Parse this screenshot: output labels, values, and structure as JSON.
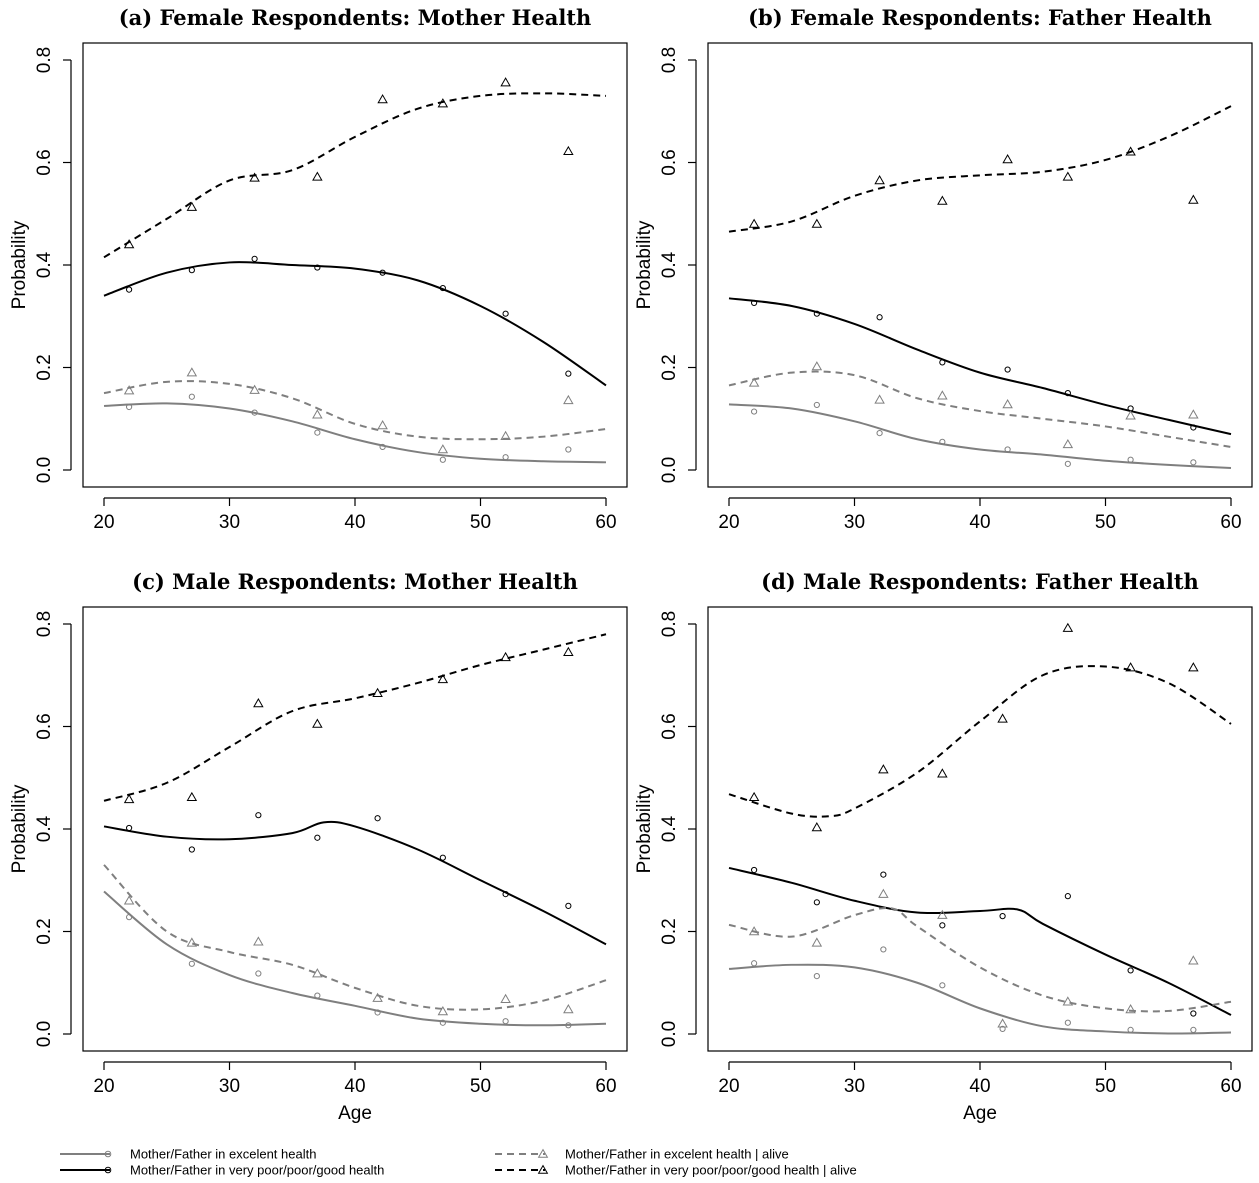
{
  "series_styles": [
    {
      "key": "excellent",
      "color": "#7f7f7f",
      "dash": false,
      "marker": "circle"
    },
    {
      "key": "poor",
      "color": "#000000",
      "dash": false,
      "marker": "circle"
    },
    {
      "key": "excellent_alive",
      "color": "#7f7f7f",
      "dash": true,
      "marker": "triangle"
    },
    {
      "key": "poor_alive",
      "color": "#000000",
      "dash": true,
      "marker": "triangle"
    }
  ],
  "legend": [
    {
      "key": "excellent",
      "label": "Mother/Father in excelent health"
    },
    {
      "key": "poor",
      "label": "Mother/Father in very poor/poor/good health"
    },
    {
      "key": "excellent_alive",
      "label": "Mother/Father in excelent health | alive"
    },
    {
      "key": "poor_alive",
      "label": "Mother/Father in very poor/poor/good health | alive"
    }
  ],
  "chart_data": [
    {
      "type": "scatter",
      "title": "(a) Female Respondents: Mother Health",
      "xlabel": "",
      "ylabel": "Probability",
      "xlim": [
        20,
        60
      ],
      "ylim": [
        0,
        0.8
      ],
      "xticks": [
        "20",
        "30",
        "40",
        "50",
        "60"
      ],
      "yticks": [
        "0.0",
        "0.2",
        "0.4",
        "0.6",
        "0.8"
      ],
      "series": [
        {
          "key": "excellent",
          "x": [
            22,
            27,
            32,
            37,
            42.2,
            47,
            52,
            57
          ],
          "y": [
            0.123,
            0.143,
            0.112,
            0.073,
            0.045,
            0.02,
            0.025,
            0.04
          ],
          "smooth_x": [
            20,
            25,
            30,
            35,
            40,
            45,
            50,
            55,
            60
          ],
          "smooth_y": [
            0.125,
            0.13,
            0.12,
            0.095,
            0.06,
            0.035,
            0.022,
            0.017,
            0.015
          ]
        },
        {
          "key": "poor",
          "x": [
            22,
            27,
            32,
            37,
            42.2,
            47,
            52,
            57
          ],
          "y": [
            0.352,
            0.39,
            0.412,
            0.395,
            0.385,
            0.355,
            0.305,
            0.188
          ],
          "smooth_x": [
            20,
            25,
            30,
            35,
            40,
            45,
            50,
            55,
            60
          ],
          "smooth_y": [
            0.34,
            0.385,
            0.405,
            0.4,
            0.393,
            0.37,
            0.32,
            0.25,
            0.165
          ]
        },
        {
          "key": "excellent_alive",
          "x": [
            22,
            27,
            32,
            37,
            42.2,
            47,
            52,
            57
          ],
          "y": [
            0.155,
            0.19,
            0.156,
            0.108,
            0.087,
            0.04,
            0.066,
            0.136
          ],
          "smooth_x": [
            20,
            25,
            30,
            35,
            40,
            45,
            50,
            55,
            60
          ],
          "smooth_y": [
            0.15,
            0.172,
            0.168,
            0.14,
            0.09,
            0.065,
            0.06,
            0.065,
            0.08
          ]
        },
        {
          "key": "poor_alive",
          "x": [
            22,
            27,
            32,
            37,
            42.2,
            47,
            52,
            57
          ],
          "y": [
            0.44,
            0.513,
            0.57,
            0.572,
            0.723,
            0.715,
            0.756,
            0.622
          ],
          "smooth_x": [
            20,
            25,
            30,
            35,
            40,
            45,
            50,
            55,
            60
          ],
          "smooth_y": [
            0.415,
            0.49,
            0.565,
            0.585,
            0.65,
            0.705,
            0.73,
            0.735,
            0.73
          ]
        }
      ]
    },
    {
      "type": "scatter",
      "title": "(b) Female Respondents: Father Health",
      "xlabel": "",
      "ylabel": "Probability",
      "xlim": [
        20,
        60
      ],
      "ylim": [
        0,
        0.8
      ],
      "xticks": [
        "20",
        "30",
        "40",
        "50",
        "60"
      ],
      "yticks": [
        "0.0",
        "0.2",
        "0.4",
        "0.6",
        "0.8"
      ],
      "series": [
        {
          "key": "excellent",
          "x": [
            22,
            27,
            32,
            37,
            42.2,
            47,
            52,
            57
          ],
          "y": [
            0.114,
            0.127,
            0.072,
            0.055,
            0.04,
            0.012,
            0.02,
            0.015
          ],
          "smooth_x": [
            20,
            25,
            30,
            35,
            40,
            45,
            50,
            55,
            60
          ],
          "smooth_y": [
            0.128,
            0.12,
            0.095,
            0.06,
            0.04,
            0.03,
            0.018,
            0.01,
            0.004
          ]
        },
        {
          "key": "poor",
          "x": [
            22,
            27,
            32,
            37,
            42.2,
            47,
            52,
            57
          ],
          "y": [
            0.326,
            0.305,
            0.298,
            0.21,
            0.196,
            0.15,
            0.12,
            0.083
          ],
          "smooth_x": [
            20,
            25,
            30,
            35,
            40,
            45,
            50,
            55,
            60
          ],
          "smooth_y": [
            0.335,
            0.32,
            0.285,
            0.235,
            0.19,
            0.16,
            0.127,
            0.098,
            0.07
          ]
        },
        {
          "key": "excellent_alive",
          "x": [
            22,
            27,
            32,
            37,
            42.2,
            47,
            52,
            57
          ],
          "y": [
            0.17,
            0.202,
            0.137,
            0.145,
            0.128,
            0.05,
            0.106,
            0.108
          ],
          "smooth_x": [
            20,
            25,
            30,
            35,
            40,
            45,
            50,
            55,
            60
          ],
          "smooth_y": [
            0.165,
            0.19,
            0.185,
            0.14,
            0.115,
            0.1,
            0.085,
            0.065,
            0.045
          ]
        },
        {
          "key": "poor_alive",
          "x": [
            22,
            27,
            32,
            37,
            42.2,
            47,
            52,
            57
          ],
          "y": [
            0.48,
            0.48,
            0.565,
            0.525,
            0.606,
            0.572,
            0.621,
            0.527
          ],
          "smooth_x": [
            20,
            25,
            30,
            35,
            40,
            45,
            50,
            55,
            60
          ],
          "smooth_y": [
            0.465,
            0.485,
            0.535,
            0.565,
            0.575,
            0.582,
            0.605,
            0.65,
            0.71
          ]
        }
      ]
    },
    {
      "type": "scatter",
      "title": "(c) Male Respondents: Mother Health",
      "xlabel": "Age",
      "ylabel": "Probability",
      "xlim": [
        20,
        60
      ],
      "ylim": [
        0,
        0.8
      ],
      "xticks": [
        "20",
        "30",
        "40",
        "50",
        "60"
      ],
      "yticks": [
        "0.0",
        "0.2",
        "0.4",
        "0.6",
        "0.8"
      ],
      "series": [
        {
          "key": "excellent",
          "x": [
            22,
            27,
            32.3,
            37,
            41.8,
            47,
            52,
            57
          ],
          "y": [
            0.228,
            0.137,
            0.118,
            0.075,
            0.042,
            0.022,
            0.025,
            0.017
          ],
          "smooth_x": [
            20,
            25,
            30,
            35,
            40,
            45,
            50,
            55,
            60
          ],
          "smooth_y": [
            0.278,
            0.175,
            0.115,
            0.08,
            0.055,
            0.03,
            0.02,
            0.017,
            0.02
          ]
        },
        {
          "key": "poor",
          "x": [
            22,
            27,
            32.3,
            37,
            41.8,
            47,
            52,
            57
          ],
          "y": [
            0.402,
            0.36,
            0.427,
            0.383,
            0.421,
            0.344,
            0.273,
            0.25
          ],
          "smooth_x": [
            20,
            25,
            30,
            35,
            37.5,
            40,
            45,
            50,
            55,
            60
          ],
          "smooth_y": [
            0.405,
            0.385,
            0.38,
            0.392,
            0.413,
            0.405,
            0.36,
            0.3,
            0.24,
            0.175
          ]
        },
        {
          "key": "excellent_alive",
          "x": [
            22,
            27,
            32.3,
            37,
            41.8,
            47,
            52,
            57
          ],
          "y": [
            0.26,
            0.178,
            0.18,
            0.118,
            0.07,
            0.044,
            0.068,
            0.048
          ],
          "smooth_x": [
            20,
            25,
            30,
            35,
            40,
            45,
            50,
            55,
            60
          ],
          "smooth_y": [
            0.33,
            0.2,
            0.16,
            0.135,
            0.09,
            0.055,
            0.048,
            0.065,
            0.105
          ]
        },
        {
          "key": "poor_alive",
          "x": [
            22,
            27,
            32.3,
            37,
            41.8,
            47,
            52,
            57
          ],
          "y": [
            0.458,
            0.462,
            0.645,
            0.605,
            0.665,
            0.692,
            0.735,
            0.745
          ],
          "smooth_x": [
            20,
            25,
            30,
            35,
            40,
            45,
            50,
            55,
            60
          ],
          "smooth_y": [
            0.455,
            0.49,
            0.56,
            0.63,
            0.655,
            0.685,
            0.72,
            0.75,
            0.78
          ]
        }
      ]
    },
    {
      "type": "scatter",
      "title": "(d) Male Respondents: Father Health",
      "xlabel": "Age",
      "ylabel": "Probability",
      "xlim": [
        20,
        60
      ],
      "ylim": [
        0,
        0.8
      ],
      "xticks": [
        "20",
        "30",
        "40",
        "50",
        "60"
      ],
      "yticks": [
        "0.0",
        "0.2",
        "0.4",
        "0.6",
        "0.8"
      ],
      "series": [
        {
          "key": "excellent",
          "x": [
            22,
            27,
            32.3,
            37,
            41.8,
            47,
            52,
            57
          ],
          "y": [
            0.138,
            0.113,
            0.165,
            0.095,
            0.01,
            0.022,
            0.008,
            0.008
          ],
          "smooth_x": [
            20,
            25,
            30,
            35,
            40,
            45,
            50,
            55,
            60
          ],
          "smooth_y": [
            0.127,
            0.135,
            0.13,
            0.1,
            0.05,
            0.015,
            0.005,
            0.001,
            0.003
          ]
        },
        {
          "key": "poor",
          "x": [
            22,
            27,
            32.3,
            37,
            41.8,
            47,
            52,
            57
          ],
          "y": [
            0.32,
            0.257,
            0.311,
            0.212,
            0.23,
            0.269,
            0.124,
            0.04
          ],
          "smooth_x": [
            20,
            25,
            30,
            35,
            40,
            43,
            45,
            50,
            55,
            60
          ],
          "smooth_y": [
            0.324,
            0.295,
            0.26,
            0.237,
            0.24,
            0.243,
            0.215,
            0.155,
            0.1,
            0.037
          ]
        },
        {
          "key": "excellent_alive",
          "x": [
            22,
            27,
            32.3,
            37,
            41.8,
            47,
            52,
            57
          ],
          "y": [
            0.2,
            0.178,
            0.273,
            0.232,
            0.02,
            0.063,
            0.048,
            0.143
          ],
          "smooth_x": [
            20,
            25,
            30,
            33,
            35,
            40,
            45,
            50,
            55,
            60
          ],
          "smooth_y": [
            0.213,
            0.19,
            0.232,
            0.245,
            0.21,
            0.13,
            0.075,
            0.05,
            0.045,
            0.063
          ]
        },
        {
          "key": "poor_alive",
          "x": [
            22,
            27,
            32.3,
            37,
            41.8,
            47,
            52,
            57
          ],
          "y": [
            0.462,
            0.403,
            0.516,
            0.508,
            0.615,
            0.792,
            0.715,
            0.715
          ],
          "smooth_x": [
            20,
            25,
            28,
            30,
            35,
            40,
            45,
            50,
            55,
            60
          ],
          "smooth_y": [
            0.468,
            0.43,
            0.425,
            0.44,
            0.51,
            0.61,
            0.7,
            0.717,
            0.685,
            0.605
          ]
        }
      ]
    }
  ]
}
